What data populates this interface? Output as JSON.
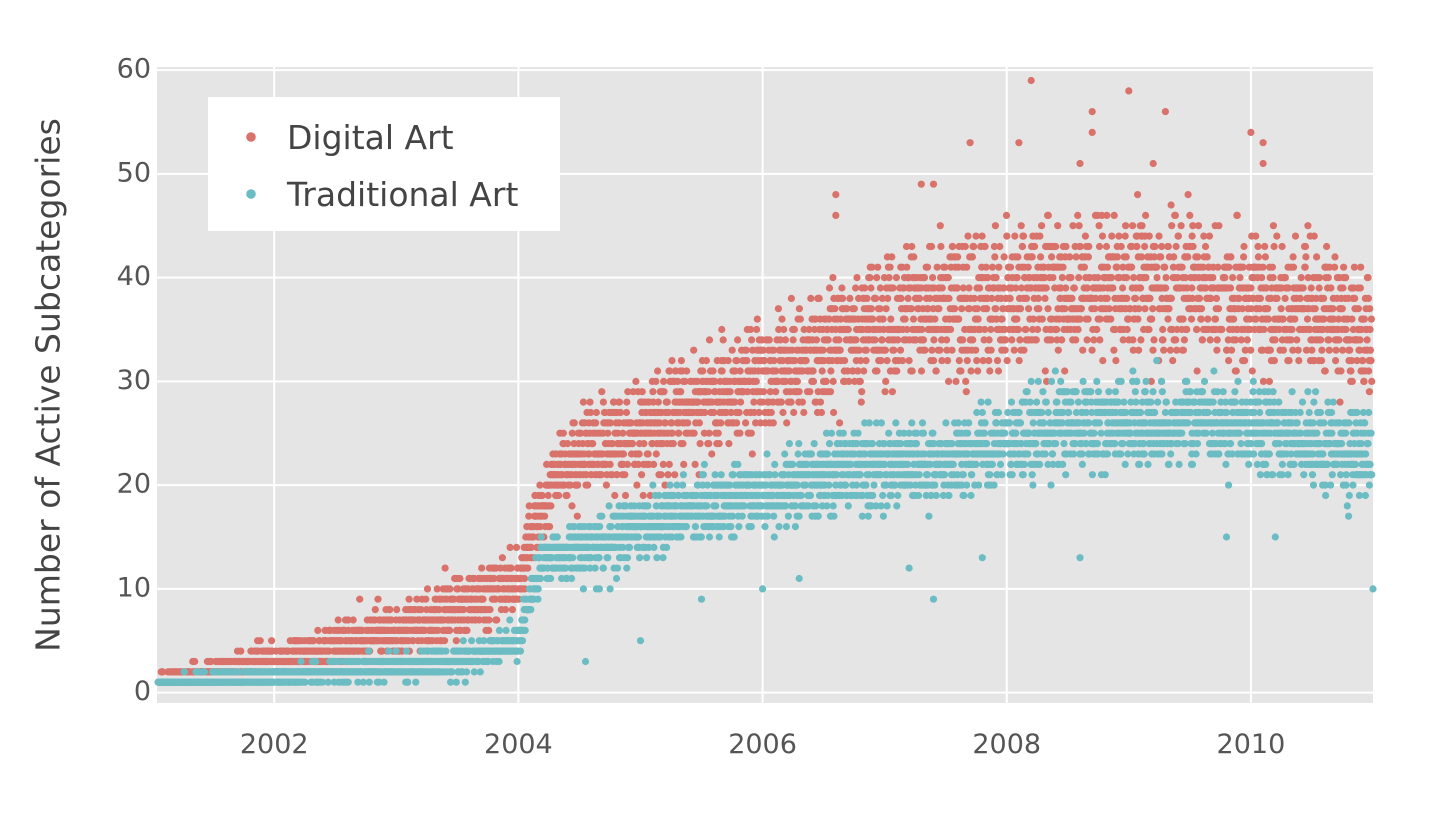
{
  "chart_data": {
    "type": "scatter",
    "title": "",
    "xlabel": "",
    "ylabel": "Number of Active Subcategories",
    "xlim": [
      2001.04,
      2011.0
    ],
    "ylim": [
      -1,
      60.3
    ],
    "xticks": [
      2002,
      2004,
      2006,
      2008,
      2010
    ],
    "xtick_labels": [
      "2002",
      "2004",
      "2006",
      "2008",
      "2010"
    ],
    "yticks": [
      0,
      10,
      20,
      30,
      40,
      50,
      60
    ],
    "ytick_labels": [
      "0",
      "10",
      "20",
      "30",
      "40",
      "50",
      "60"
    ],
    "grid": true,
    "legend": {
      "placement": "top-left",
      "entries": [
        "Digital Art",
        "Traditional Art"
      ]
    },
    "colors": {
      "Digital Art": "#d9726a",
      "Traditional Art": "#6cbdc3",
      "plot_background": "#e5e5e5",
      "grid": "#ffffff"
    },
    "series": [
      {
        "name": "Digital Art",
        "trend": [
          [
            2001.05,
            1
          ],
          [
            2002.0,
            3
          ],
          [
            2003.0,
            6
          ],
          [
            2003.5,
            8
          ],
          [
            2004.0,
            11
          ],
          [
            2004.3,
            21
          ],
          [
            2004.7,
            24
          ],
          [
            2005.0,
            25
          ],
          [
            2005.5,
            28
          ],
          [
            2006.0,
            30
          ],
          [
            2006.5,
            33
          ],
          [
            2007.0,
            36
          ],
          [
            2007.5,
            37
          ],
          [
            2008.0,
            38
          ],
          [
            2008.5,
            39
          ],
          [
            2009.0,
            39
          ],
          [
            2009.5,
            39
          ],
          [
            2010.0,
            38
          ],
          [
            2010.5,
            37
          ],
          [
            2011.0,
            35
          ]
        ],
        "spread": [
          [
            2001.05,
            1
          ],
          [
            2002.0,
            2
          ],
          [
            2003.0,
            3
          ],
          [
            2004.0,
            4
          ],
          [
            2004.3,
            5
          ],
          [
            2005.0,
            6
          ],
          [
            2006.0,
            7
          ],
          [
            2007.0,
            8
          ],
          [
            2008.0,
            9
          ],
          [
            2009.0,
            9
          ],
          [
            2010.0,
            8
          ],
          [
            2011.0,
            8
          ]
        ],
        "outliers": [
          [
            2008.2,
            59
          ],
          [
            2009.0,
            58
          ],
          [
            2009.3,
            56
          ],
          [
            2008.7,
            56
          ],
          [
            2008.7,
            54
          ],
          [
            2010.0,
            54
          ],
          [
            2010.1,
            53
          ],
          [
            2007.7,
            53
          ],
          [
            2008.1,
            53
          ],
          [
            2007.4,
            49
          ],
          [
            2007.3,
            49
          ],
          [
            2006.6,
            48
          ],
          [
            2006.6,
            46
          ],
          [
            2009.2,
            51
          ],
          [
            2010.1,
            51
          ],
          [
            2008.6,
            51
          ],
          [
            2002.7,
            9
          ],
          [
            2003.4,
            12
          ]
        ]
      },
      {
        "name": "Traditional Art",
        "trend": [
          [
            2001.05,
            1
          ],
          [
            2002.0,
            1.5
          ],
          [
            2003.0,
            2.5
          ],
          [
            2003.5,
            3
          ],
          [
            2004.0,
            5
          ],
          [
            2004.2,
            13
          ],
          [
            2004.7,
            14
          ],
          [
            2005.0,
            16
          ],
          [
            2005.5,
            18
          ],
          [
            2006.0,
            19
          ],
          [
            2006.5,
            21
          ],
          [
            2007.0,
            22
          ],
          [
            2007.5,
            22
          ],
          [
            2008.0,
            24
          ],
          [
            2008.5,
            26
          ],
          [
            2009.0,
            26
          ],
          [
            2009.5,
            26
          ],
          [
            2010.0,
            26
          ],
          [
            2010.5,
            24
          ],
          [
            2011.0,
            23
          ]
        ],
        "spread": [
          [
            2001.05,
            0.6
          ],
          [
            2002.0,
            1
          ],
          [
            2003.0,
            1.5
          ],
          [
            2004.0,
            2
          ],
          [
            2004.2,
            3
          ],
          [
            2005.0,
            4
          ],
          [
            2006.0,
            4
          ],
          [
            2007.0,
            5
          ],
          [
            2008.0,
            5
          ],
          [
            2009.0,
            5
          ],
          [
            2010.0,
            5
          ],
          [
            2011.0,
            5
          ]
        ],
        "outliers": [
          [
            2004.55,
            3
          ],
          [
            2005.0,
            5
          ],
          [
            2005.5,
            9
          ],
          [
            2007.4,
            9
          ],
          [
            2008.6,
            13
          ],
          [
            2006.0,
            10
          ],
          [
            2007.8,
            13
          ],
          [
            2009.8,
            15
          ],
          [
            2010.2,
            15
          ],
          [
            2011.0,
            10
          ],
          [
            2007.2,
            12
          ],
          [
            2006.3,
            11
          ],
          [
            2010.8,
            17
          ]
        ]
      }
    ]
  }
}
